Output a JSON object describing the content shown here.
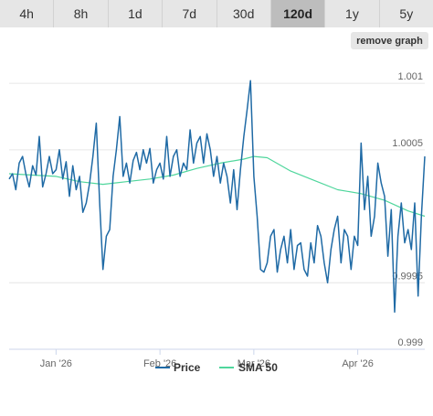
{
  "range_tabs": [
    "4h",
    "8h",
    "1d",
    "7d",
    "30d",
    "120d",
    "1y",
    "5y"
  ],
  "active_tab": "120d",
  "remove_graph_label": "remove graph",
  "colors": {
    "price": "#1f6aa5",
    "sma": "#4fd69c",
    "grid": "#e6e6e6",
    "axis": "#ccd6eb"
  },
  "chart_data": {
    "type": "line",
    "xlabel": "",
    "ylabel": "",
    "x_range": [
      "2025-12-18",
      "2026-04-21"
    ],
    "x_ticks": [
      {
        "date": "2026-01-01",
        "label": "Jan '26"
      },
      {
        "date": "2026-02-01",
        "label": "Feb '26"
      },
      {
        "date": "2026-03-01",
        "label": "Mar '26"
      },
      {
        "date": "2026-04-01",
        "label": "Apr '26"
      }
    ],
    "y_range": [
      0.999,
      1.0012
    ],
    "y_ticks": [
      {
        "value": 0.999,
        "label": "0.999"
      },
      {
        "value": 0.9995,
        "label": "0.9995"
      },
      {
        "value": 1.0005,
        "label": "1.0005"
      },
      {
        "value": 1.001,
        "label": "1.001"
      }
    ],
    "grid": true,
    "legend_position": "bottom",
    "series": [
      {
        "name": "Price",
        "color": "#1f6aa5",
        "points": [
          [
            "2025-12-18",
            1.00028
          ],
          [
            "2025-12-19",
            1.00032
          ],
          [
            "2025-12-20",
            1.0002
          ],
          [
            "2025-12-21",
            1.0004
          ],
          [
            "2025-12-22",
            1.00045
          ],
          [
            "2025-12-23",
            1.00032
          ],
          [
            "2025-12-24",
            1.00022
          ],
          [
            "2025-12-25",
            1.00038
          ],
          [
            "2025-12-26",
            1.00031
          ],
          [
            "2025-12-27",
            1.0006
          ],
          [
            "2025-12-28",
            1.00022
          ],
          [
            "2025-12-29",
            1.00032
          ],
          [
            "2025-12-30",
            1.00045
          ],
          [
            "2025-12-31",
            1.00032
          ],
          [
            "2026-01-01",
            1.00035
          ],
          [
            "2026-01-02",
            1.0005
          ],
          [
            "2026-01-03",
            1.00028
          ],
          [
            "2026-01-04",
            1.00041
          ],
          [
            "2026-01-05",
            1.00015
          ],
          [
            "2026-01-06",
            1.00038
          ],
          [
            "2026-01-07",
            1.0002
          ],
          [
            "2026-01-08",
            1.0003
          ],
          [
            "2026-01-09",
            1.00003
          ],
          [
            "2026-01-10",
            1.0001
          ],
          [
            "2026-01-11",
            1.00025
          ],
          [
            "2026-01-12",
            1.00045
          ],
          [
            "2026-01-13",
            1.0007
          ],
          [
            "2026-01-14",
            1.0001
          ],
          [
            "2026-01-15",
            0.9996
          ],
          [
            "2026-01-16",
            0.99985
          ],
          [
            "2026-01-17",
            0.9999
          ],
          [
            "2026-01-18",
            1.0003
          ],
          [
            "2026-01-19",
            1.0005
          ],
          [
            "2026-01-20",
            1.00075
          ],
          [
            "2026-01-21",
            1.0003
          ],
          [
            "2026-01-22",
            1.0004
          ],
          [
            "2026-01-23",
            1.00025
          ],
          [
            "2026-01-24",
            1.00042
          ],
          [
            "2026-01-25",
            1.00048
          ],
          [
            "2026-01-26",
            1.00035
          ],
          [
            "2026-01-27",
            1.0005
          ],
          [
            "2026-01-28",
            1.0004
          ],
          [
            "2026-01-29",
            1.00051
          ],
          [
            "2026-01-30",
            1.00025
          ],
          [
            "2026-01-31",
            1.00035
          ],
          [
            "2026-02-01",
            1.0004
          ],
          [
            "2026-02-02",
            1.00028
          ],
          [
            "2026-02-03",
            1.0006
          ],
          [
            "2026-02-04",
            1.0003
          ],
          [
            "2026-02-05",
            1.00045
          ],
          [
            "2026-02-06",
            1.0005
          ],
          [
            "2026-02-07",
            1.0003
          ],
          [
            "2026-02-08",
            1.0004
          ],
          [
            "2026-02-09",
            1.00035
          ],
          [
            "2026-02-10",
            1.00065
          ],
          [
            "2026-02-11",
            1.0004
          ],
          [
            "2026-02-12",
            1.00055
          ],
          [
            "2026-02-13",
            1.0006
          ],
          [
            "2026-02-14",
            1.0004
          ],
          [
            "2026-02-15",
            1.00062
          ],
          [
            "2026-02-16",
            1.0005
          ],
          [
            "2026-02-17",
            1.0003
          ],
          [
            "2026-02-18",
            1.00045
          ],
          [
            "2026-02-19",
            1.00025
          ],
          [
            "2026-02-20",
            1.0004
          ],
          [
            "2026-02-21",
            1.0003
          ],
          [
            "2026-02-22",
            1.0001
          ],
          [
            "2026-02-23",
            1.00035
          ],
          [
            "2026-02-24",
            1.00005
          ],
          [
            "2026-02-25",
            1.00035
          ],
          [
            "2026-02-26",
            1.0006
          ],
          [
            "2026-02-27",
            1.0008
          ],
          [
            "2026-02-28",
            1.00102
          ],
          [
            "2026-03-01",
            1.0003
          ],
          [
            "2026-03-02",
            1.0
          ],
          [
            "2026-03-03",
            0.9996
          ],
          [
            "2026-03-04",
            0.99958
          ],
          [
            "2026-03-05",
            0.99965
          ],
          [
            "2026-03-06",
            0.99985
          ],
          [
            "2026-03-07",
            0.9999
          ],
          [
            "2026-03-08",
            0.99958
          ],
          [
            "2026-03-09",
            0.99975
          ],
          [
            "2026-03-10",
            0.99985
          ],
          [
            "2026-03-11",
            0.99965
          ],
          [
            "2026-03-12",
            0.9999
          ],
          [
            "2026-03-13",
            0.9996
          ],
          [
            "2026-03-14",
            0.99978
          ],
          [
            "2026-03-15",
            0.9998
          ],
          [
            "2026-03-16",
            0.9996
          ],
          [
            "2026-03-17",
            0.99955
          ],
          [
            "2026-03-18",
            0.9998
          ],
          [
            "2026-03-19",
            0.99965
          ],
          [
            "2026-03-20",
            0.99993
          ],
          [
            "2026-03-21",
            0.99985
          ],
          [
            "2026-03-22",
            0.99965
          ],
          [
            "2026-03-23",
            0.9995
          ],
          [
            "2026-03-24",
            0.99975
          ],
          [
            "2026-03-25",
            0.9999
          ],
          [
            "2026-03-26",
            1.0
          ],
          [
            "2026-03-27",
            0.99965
          ],
          [
            "2026-03-28",
            0.9999
          ],
          [
            "2026-03-29",
            0.99985
          ],
          [
            "2026-03-30",
            0.9996
          ],
          [
            "2026-03-31",
            0.99985
          ],
          [
            "2026-04-01",
            0.99978
          ],
          [
            "2026-04-02",
            1.00055
          ],
          [
            "2026-04-03",
            1.00005
          ],
          [
            "2026-04-04",
            1.0003
          ],
          [
            "2026-04-05",
            0.99985
          ],
          [
            "2026-04-06",
            1.0
          ],
          [
            "2026-04-07",
            1.0004
          ],
          [
            "2026-04-08",
            1.00025
          ],
          [
            "2026-04-09",
            1.00015
          ],
          [
            "2026-04-10",
            0.9997
          ],
          [
            "2026-04-11",
            1.00005
          ],
          [
            "2026-04-12",
            0.99928
          ],
          [
            "2026-04-13",
            0.99985
          ],
          [
            "2026-04-14",
            1.0001
          ],
          [
            "2026-04-15",
            0.9998
          ],
          [
            "2026-04-16",
            0.9999
          ],
          [
            "2026-04-17",
            0.99975
          ],
          [
            "2026-04-18",
            1.0001
          ],
          [
            "2026-04-19",
            0.9994
          ],
          [
            "2026-04-20",
            1.0
          ],
          [
            "2026-04-21",
            1.00045
          ]
        ]
      },
      {
        "name": "SMA 50",
        "color": "#4fd69c",
        "points": [
          [
            "2025-12-18",
            1.00032
          ],
          [
            "2025-12-25",
            1.00031
          ],
          [
            "2026-01-01",
            1.0003
          ],
          [
            "2026-01-08",
            1.00026
          ],
          [
            "2026-01-15",
            1.00024
          ],
          [
            "2026-01-22",
            1.00026
          ],
          [
            "2026-01-29",
            1.00028
          ],
          [
            "2026-02-05",
            1.00031
          ],
          [
            "2026-02-12",
            1.00036
          ],
          [
            "2026-02-19",
            1.0004
          ],
          [
            "2026-02-26",
            1.00043
          ],
          [
            "2026-03-01",
            1.00045
          ],
          [
            "2026-03-05",
            1.00044
          ],
          [
            "2026-03-12",
            1.00034
          ],
          [
            "2026-03-19",
            1.00027
          ],
          [
            "2026-03-26",
            1.0002
          ],
          [
            "2026-04-02",
            1.00017
          ],
          [
            "2026-04-09",
            1.00012
          ],
          [
            "2026-04-16",
            1.00004
          ],
          [
            "2026-04-21",
            1.0
          ]
        ]
      }
    ]
  }
}
